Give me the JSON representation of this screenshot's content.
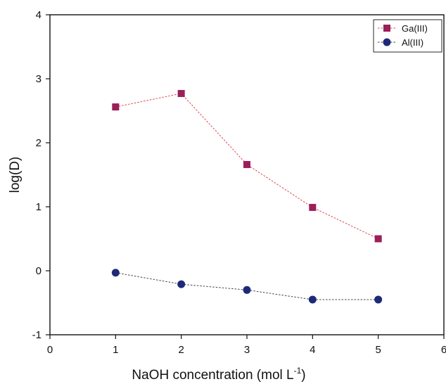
{
  "chart_data": {
    "type": "line",
    "title": "",
    "xlabel": "NaOH concentration (mol L",
    "xlabel_superscript": "-1",
    "xlabel_suffix": ")",
    "ylabel": "log(D)",
    "xlim": [
      0,
      6
    ],
    "ylim": [
      -1,
      4
    ],
    "x_ticks": [
      0,
      1,
      2,
      3,
      4,
      5,
      6
    ],
    "x_tick_labels": [
      "0",
      "1",
      "2",
      "3",
      "4",
      "5",
      "6"
    ],
    "y_ticks": [
      -1,
      0,
      1,
      2,
      3,
      4
    ],
    "y_tick_labels": [
      "-1",
      "0",
      "1",
      "2",
      "3",
      "4"
    ],
    "grid": false,
    "legend_position": "top-right",
    "series": [
      {
        "name": "Ga(III)",
        "marker": "square",
        "color": "#9b1f5a",
        "line_color": "#e0414b",
        "line_style": "dotted",
        "x": [
          1,
          2,
          3,
          4,
          5
        ],
        "y": [
          2.56,
          2.77,
          1.66,
          0.99,
          0.5
        ]
      },
      {
        "name": "Al(III)",
        "marker": "circle",
        "color": "#1e2a78",
        "line_color": "#444444",
        "line_style": "dotted",
        "x": [
          1,
          2,
          3,
          4,
          5
        ],
        "y": [
          -0.03,
          -0.21,
          -0.3,
          -0.45,
          -0.45
        ]
      }
    ]
  }
}
